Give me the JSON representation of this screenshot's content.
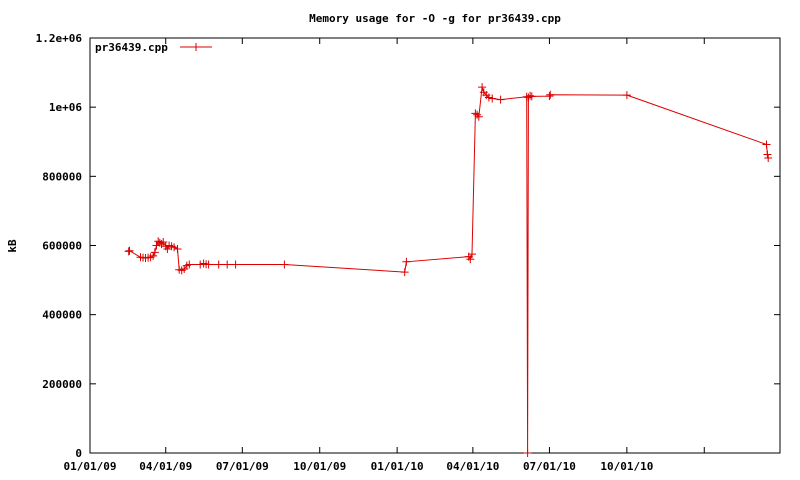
{
  "chart_data": {
    "type": "line",
    "title": "Memory usage for -O -g for pr36439.cpp",
    "xlabel": "",
    "ylabel": "kB",
    "x_type": "date",
    "xlim": [
      "2009-01-01",
      "2011-04-01"
    ],
    "ylim": [
      0,
      1200000
    ],
    "x_ticks": [
      "2009-01-01",
      "2009-04-01",
      "2009-07-01",
      "2009-10-01",
      "2010-01-01",
      "2010-04-01",
      "2010-07-01",
      "2010-10-01",
      "2011-01-01"
    ],
    "x_tick_labels": [
      "01/01/09",
      "04/01/09",
      "07/01/09",
      "10/01/09",
      "01/01/10",
      "04/01/10",
      "07/01/10",
      "10/01/10",
      ""
    ],
    "y_ticks": [
      0,
      200000,
      400000,
      600000,
      800000,
      1000000,
      1200000
    ],
    "y_tick_labels": [
      "0",
      "200000",
      "400000",
      "600000",
      "800000",
      "1e+06",
      "1.2e+06"
    ],
    "grid": false,
    "legend_position": "top-left",
    "series": [
      {
        "name": "pr36439.cpp",
        "color": "#dd0000",
        "points": [
          [
            "2009-02-16",
            583000
          ],
          [
            "2009-02-17",
            585000
          ],
          [
            "2009-03-02",
            566000
          ],
          [
            "2009-03-05",
            565000
          ],
          [
            "2009-03-08",
            564000
          ],
          [
            "2009-03-11",
            565000
          ],
          [
            "2009-03-14",
            566000
          ],
          [
            "2009-03-17",
            570000
          ],
          [
            "2009-03-19",
            580000
          ],
          [
            "2009-03-21",
            600000
          ],
          [
            "2009-03-23",
            612000
          ],
          [
            "2009-03-25",
            608000
          ],
          [
            "2009-03-27",
            604000
          ],
          [
            "2009-03-29",
            610000
          ],
          [
            "2009-04-01",
            598000
          ],
          [
            "2009-04-03",
            590000
          ],
          [
            "2009-04-05",
            600000
          ],
          [
            "2009-04-08",
            598000
          ],
          [
            "2009-04-11",
            595000
          ],
          [
            "2009-04-15",
            590000
          ],
          [
            "2009-04-17",
            530000
          ],
          [
            "2009-04-20",
            528000
          ],
          [
            "2009-04-23",
            532000
          ],
          [
            "2009-04-26",
            542000
          ],
          [
            "2009-04-29",
            545000
          ],
          [
            "2009-05-12",
            545000
          ],
          [
            "2009-05-16",
            548000
          ],
          [
            "2009-05-19",
            546000
          ],
          [
            "2009-05-22",
            545000
          ],
          [
            "2009-06-03",
            545000
          ],
          [
            "2009-06-13",
            545000
          ],
          [
            "2009-06-23",
            545000
          ],
          [
            "2009-08-20",
            545000
          ],
          [
            "2010-01-10",
            523000
          ],
          [
            "2010-01-12",
            553000
          ],
          [
            "2010-03-27",
            568000
          ],
          [
            "2010-03-29",
            560000
          ],
          [
            "2010-03-31",
            575000
          ],
          [
            "2010-04-04",
            982000
          ],
          [
            "2010-04-06",
            978000
          ],
          [
            "2010-04-08",
            972000
          ],
          [
            "2010-04-12",
            1058000
          ],
          [
            "2010-04-14",
            1043000
          ],
          [
            "2010-04-17",
            1035000
          ],
          [
            "2010-04-20",
            1028000
          ],
          [
            "2010-04-24",
            1025000
          ],
          [
            "2010-05-04",
            1022000
          ],
          [
            "2010-06-04",
            1030000
          ],
          [
            "2010-06-05",
            0
          ],
          [
            "2010-06-06",
            1028000
          ],
          [
            "2010-06-08",
            1033000
          ],
          [
            "2010-06-10",
            1031000
          ],
          [
            "2010-07-01",
            1032000
          ],
          [
            "2010-07-02",
            1036000
          ],
          [
            "2010-10-01",
            1035000
          ],
          [
            "2011-03-16",
            892000
          ],
          [
            "2011-03-17",
            863000
          ],
          [
            "2011-03-18",
            853000
          ]
        ]
      }
    ]
  }
}
